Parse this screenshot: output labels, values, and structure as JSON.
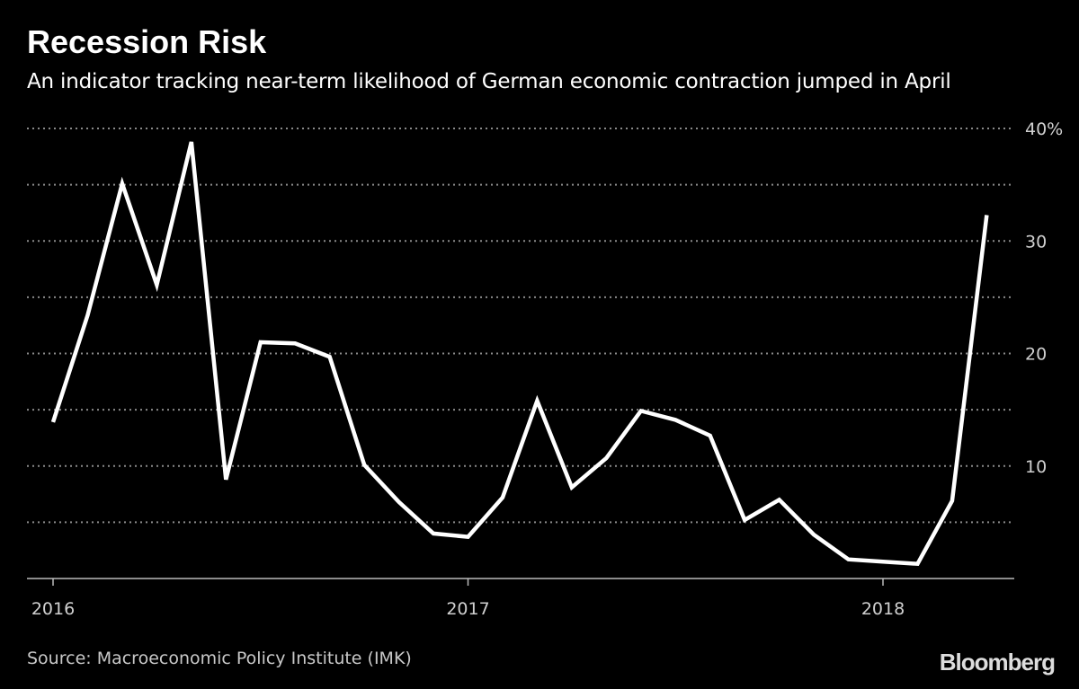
{
  "chart_data": {
    "type": "line",
    "title": "Recession Risk",
    "subtitle": "An indicator tracking near-term likelihood of German economic contraction jumped in April",
    "source": "Source: Macroeconomic Policy Institute (IMK)",
    "brand": "Bloomberg",
    "xlabel": "",
    "ylabel": "",
    "x": [
      "2016-01",
      "2016-02",
      "2016-03",
      "2016-04",
      "2016-05",
      "2016-06",
      "2016-07",
      "2016-08",
      "2016-09",
      "2016-10",
      "2016-11",
      "2016-12",
      "2017-01",
      "2017-02",
      "2017-03",
      "2017-04",
      "2017-05",
      "2017-06",
      "2017-07",
      "2017-08",
      "2017-09",
      "2017-10",
      "2017-11",
      "2017-12",
      "2018-01",
      "2018-02",
      "2018-03",
      "2018-04"
    ],
    "series": [
      {
        "values": [
          13.9,
          23.4,
          35.1,
          26.1,
          38.8,
          8.8,
          21.0,
          20.9,
          19.7,
          10.1,
          6.8,
          4.0,
          3.7,
          7.2,
          15.8,
          8.1,
          10.7,
          14.9,
          14.1,
          12.7,
          5.2,
          7.0,
          3.9,
          1.7,
          1.5,
          1.3,
          6.9,
          32.3
        ],
        "color": "#ffffff"
      }
    ],
    "x_ticks": [
      "2016",
      "2017",
      "2018"
    ],
    "y_ticks": [
      "10",
      "20",
      "30",
      "40%"
    ],
    "y_tick_values": [
      10,
      20,
      30,
      40
    ],
    "ylim": [
      0,
      40
    ],
    "y_axis_side": "right",
    "grid": true,
    "grid_step": 5,
    "background": "#000000"
  }
}
